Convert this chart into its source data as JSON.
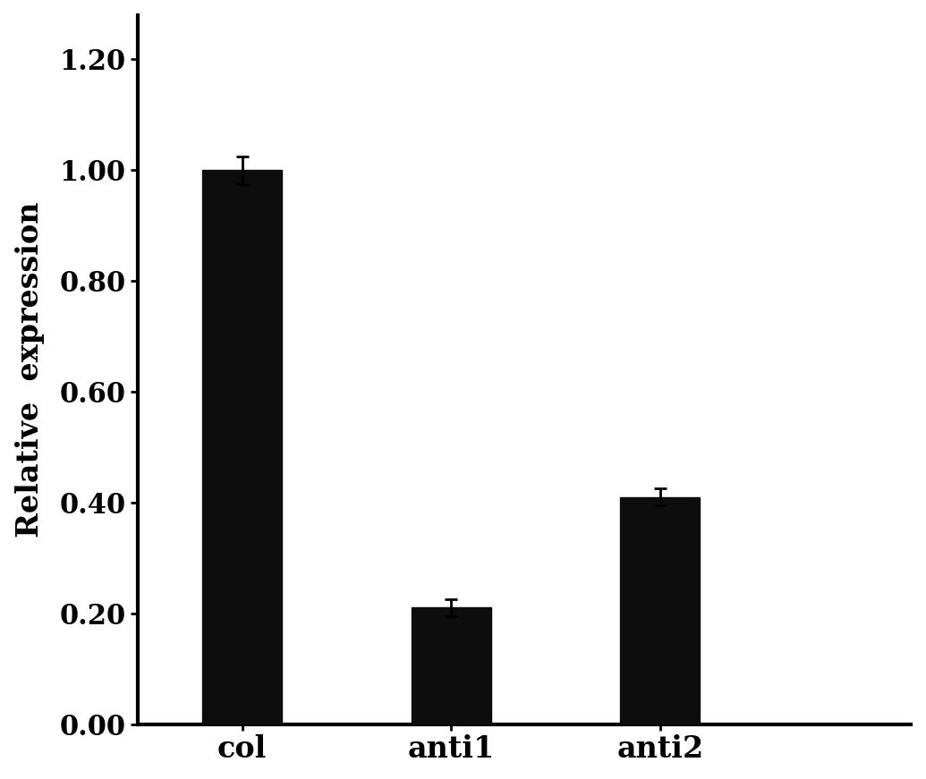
{
  "categories": [
    "col",
    "anti1",
    "anti2"
  ],
  "values": [
    1.0,
    0.21,
    0.41
  ],
  "errors": [
    0.025,
    0.015,
    0.015
  ],
  "bar_color": "#0d0d0d",
  "bar_width": 0.38,
  "ylabel": "Relative  expression",
  "ylim": [
    0,
    1.28
  ],
  "yticks": [
    0.0,
    0.2,
    0.4,
    0.6,
    0.8,
    1.0,
    1.2
  ],
  "ytick_labels": [
    "0.00",
    "0.20",
    "0.40",
    "0.60",
    "0.80",
    "1.00",
    "1.20"
  ],
  "ylabel_fontsize": 24,
  "tick_fontsize": 22,
  "xtick_fontsize": 24,
  "background_color": "#ffffff",
  "error_color": "#000000",
  "error_capsize": 5,
  "error_linewidth": 2,
  "spine_linewidth": 3.0,
  "xlim": [
    -0.5,
    3.2
  ]
}
